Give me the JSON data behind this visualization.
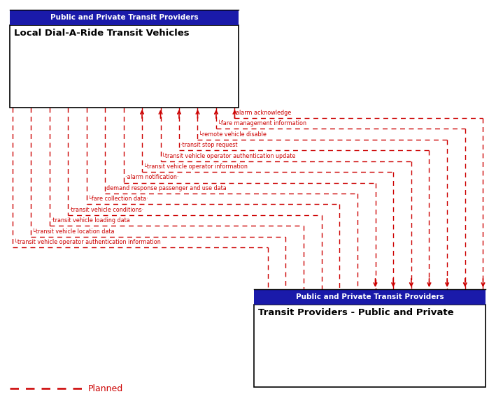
{
  "bg_color": "#ffffff",
  "box1_header_bg": "#1a1aaa",
  "box1_header_text": "Public and Private Transit Providers",
  "box1_title": "Local Dial-A-Ride Transit Vehicles",
  "box2_header_bg": "#1a1aaa",
  "box2_header_text": "Public and Private Transit Providers",
  "box2_title": "Transit Providers - Public and Private",
  "arrow_color": "#cc0000",
  "text_color": "#cc0000",
  "legend_dash_color": "#cc0000",
  "legend_text": "Planned",
  "messages": [
    {
      "label": "alarm acknowledge",
      "lft_i": 12,
      "rgt_i": 0
    },
    {
      "label": "└fare management information",
      "lft_i": 11,
      "rgt_i": 1
    },
    {
      "label": "└remote vehicle disable",
      "lft_i": 10,
      "rgt_i": 2
    },
    {
      "label": "·transit stop request",
      "lft_i": 9,
      "rgt_i": 3
    },
    {
      "label": "└transit vehicle operator authentication update",
      "lft_i": 8,
      "rgt_i": 4
    },
    {
      "label": "└transit vehicle operator information",
      "lft_i": 7,
      "rgt_i": 5
    },
    {
      "label": "·alarm notification·",
      "lft_i": 6,
      "rgt_i": 6
    },
    {
      "label": "demand response passenger and use data",
      "lft_i": 5,
      "rgt_i": 7
    },
    {
      "label": "└fare collection data·",
      "lft_i": 4,
      "rgt_i": 8
    },
    {
      "label": "·transit vehicle conditions·",
      "lft_i": 3,
      "rgt_i": 9
    },
    {
      "label": "·transit vehicle loading data",
      "lft_i": 2,
      "rgt_i": 10
    },
    {
      "label": "└transit vehicle location data",
      "lft_i": 1,
      "rgt_i": 11
    },
    {
      "label": "└transit vehicle operator authentication information",
      "lft_i": 0,
      "rgt_i": 12
    }
  ],
  "num_lines": 13,
  "arrows_up_threshold": 7,
  "arrows_down_threshold": 7
}
